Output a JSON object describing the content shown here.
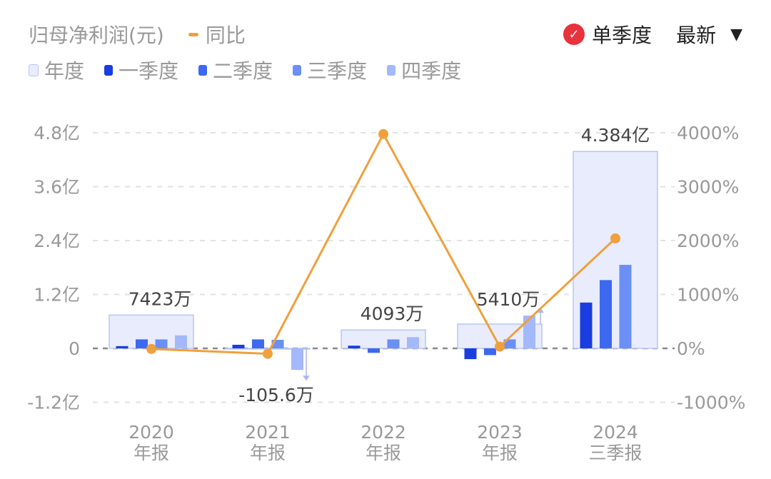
{
  "header": {
    "title": "归母净利润(元)",
    "yoy_label": "同比",
    "toggle_label": "单季度",
    "sort_label": "最新",
    "dropdown_icon": "triangle-down-icon",
    "check_icon": "check-circle-icon"
  },
  "colors": {
    "year": "#e8ecfc",
    "year_border": "#b9c6f2",
    "q1": "#1a3de0",
    "q2": "#3d68f0",
    "q3": "#6b8ff5",
    "q4": "#a3b9fa",
    "yoy": "#f0a03c"
  },
  "chart_data": {
    "type": "bar",
    "legend": [
      "年度",
      "一季度",
      "二季度",
      "三季度",
      "四季度"
    ],
    "categories": [
      [
        "2020",
        "年报"
      ],
      [
        "2021",
        "年报"
      ],
      [
        "2022",
        "年报"
      ],
      [
        "2023",
        "年报"
      ],
      [
        "2024",
        "三季报"
      ]
    ],
    "annual_values_yi": [
      0.7423,
      -0.01056,
      0.4093,
      0.541,
      4.384
    ],
    "annual_labels": [
      "7423万",
      "-105.6万",
      "4093万",
      "5410万",
      "4.384亿"
    ],
    "quarter_series_yi": [
      {
        "name": "一季度",
        "values": [
          0.05,
          0.08,
          0.06,
          -0.24,
          1.02
        ]
      },
      {
        "name": "二季度",
        "values": [
          0.2,
          0.2,
          -0.1,
          -0.15,
          1.52
        ]
      },
      {
        "name": "三季度",
        "values": [
          0.2,
          0.19,
          0.2,
          0.2,
          1.86
        ]
      },
      {
        "name": "四季度",
        "values": [
          0.29,
          -0.48,
          0.25,
          0.73,
          null
        ]
      }
    ],
    "yoy_series": {
      "name": "同比",
      "values": [
        -10,
        -101,
        3976,
        32,
        2040
      ]
    },
    "left_axis": {
      "ylim": [
        -1.2,
        4.8
      ],
      "ticks": [
        "4.8亿",
        "3.6亿",
        "2.4亿",
        "1.2亿",
        "0",
        "-1.2亿"
      ]
    },
    "right_axis": {
      "ylim": [
        -1000,
        4000
      ],
      "ticks": [
        "4000%",
        "3000%",
        "2000%",
        "1000%",
        "0%",
        "-1000%"
      ]
    },
    "grid": true,
    "legend_placement": "top-left"
  }
}
